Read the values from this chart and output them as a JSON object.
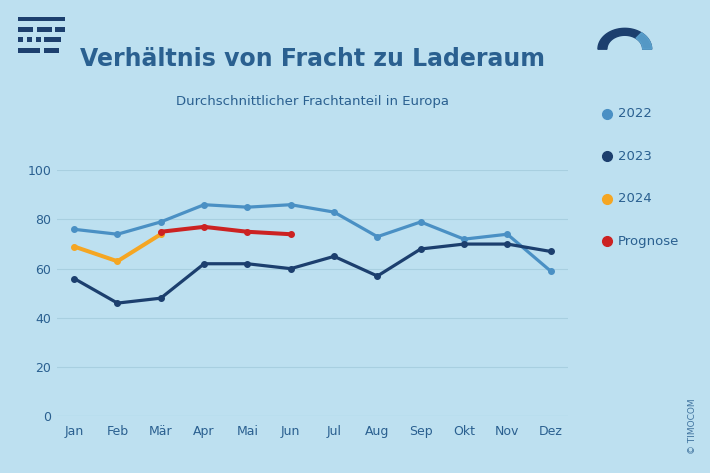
{
  "title": "Verhältnis von Fracht zu Laderaum",
  "subtitle": "Durchschnittlicher Frachtanteil in Europa",
  "background_color": "#bde0f0",
  "months": [
    "Jan",
    "Feb",
    "Mär",
    "Apr",
    "Mai",
    "Jun",
    "Jul",
    "Aug",
    "Sep",
    "Okt",
    "Nov",
    "Dez"
  ],
  "series_2022": [
    76,
    74,
    79,
    86,
    85,
    86,
    83,
    73,
    79,
    72,
    74,
    59
  ],
  "series_2023": [
    56,
    46,
    48,
    62,
    62,
    60,
    65,
    57,
    68,
    70,
    70,
    67
  ],
  "series_2024": [
    69,
    63,
    74,
    null,
    null,
    null,
    null,
    null,
    null,
    null,
    null,
    null
  ],
  "series_prognose": [
    null,
    null,
    75,
    77,
    75,
    74,
    null,
    null,
    null,
    null,
    null,
    null
  ],
  "color_2022": "#4a90c4",
  "color_2023": "#1c3f6e",
  "color_2024": "#f5a623",
  "color_prognose": "#cc2222",
  "ylim": [
    0,
    100
  ],
  "yticks": [
    0,
    20,
    40,
    60,
    80,
    100
  ],
  "grid_color": "#a8cfe0",
  "text_color": "#2a6090",
  "legend_labels": [
    "2022",
    "2023",
    "2024",
    "Prognose"
  ],
  "watermark": "© TIMOCOM"
}
